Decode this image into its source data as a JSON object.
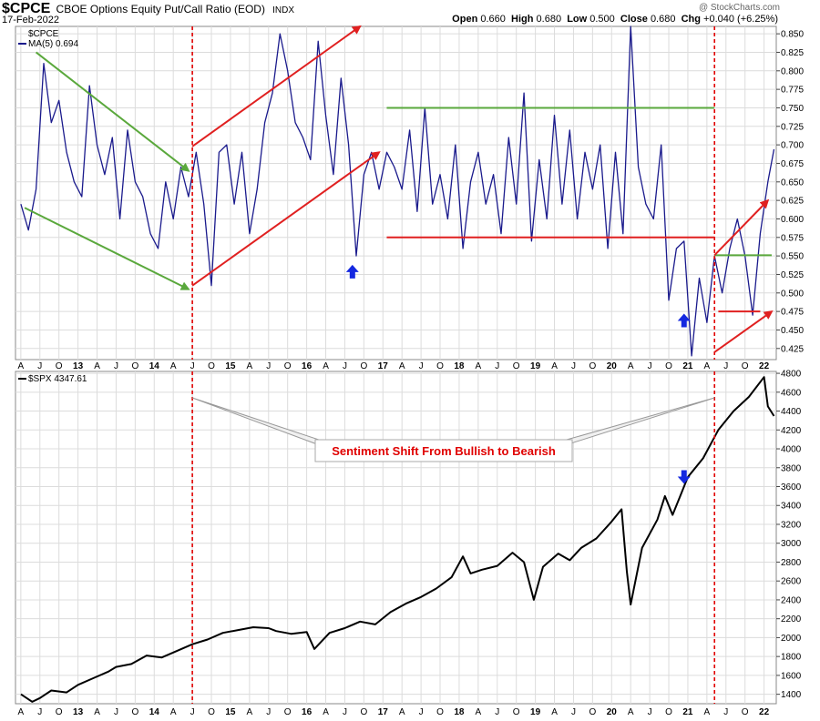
{
  "header": {
    "symbol": "$CPCE",
    "description": "CBOE Options Equity Put/Call Ratio (EOD)",
    "exchange": "INDX",
    "date": "17-Feb-2022",
    "open_label": "Open",
    "open": "0.660",
    "high_label": "High",
    "high": "0.680",
    "low_label": "Low",
    "low": "0.500",
    "close_label": "Close",
    "close": "0.680",
    "chg_label": "Chg",
    "chg": "+0.040 (+6.25%)",
    "copyright": "@ StockCharts.com"
  },
  "colors": {
    "cpce_line": "#1a1a8c",
    "spx_line": "#000000",
    "bullish_trend": "#5aa83c",
    "bearish_trend": "#e02020",
    "marker": "#1428e0",
    "grid": "#dcdcdc"
  },
  "chart_data": [
    {
      "type": "line",
      "name": "cpce_panel",
      "legend": [
        "$CPCE",
        "MA(5) 0.694"
      ],
      "x_ticks": [
        "A",
        "J",
        "O",
        "13",
        "A",
        "J",
        "O",
        "14",
        "A",
        "J",
        "O",
        "15",
        "A",
        "J",
        "O",
        "16",
        "A",
        "J",
        "O",
        "17",
        "A",
        "J",
        "O",
        "18",
        "A",
        "J",
        "O",
        "19",
        "A",
        "J",
        "O",
        "20",
        "A",
        "J",
        "O",
        "21",
        "A",
        "J",
        "O",
        "22"
      ],
      "x_range": [
        "2012-03",
        "2022-02"
      ],
      "y_ticks": [
        "0.425",
        "0.450",
        "0.475",
        "0.500",
        "0.525",
        "0.550",
        "0.575",
        "0.600",
        "0.625",
        "0.650",
        "0.675",
        "0.700",
        "0.725",
        "0.750",
        "0.775",
        "0.800",
        "0.825",
        "0.850"
      ],
      "ylim": [
        0.41,
        0.86
      ],
      "series": [
        {
          "name": "MA(5)",
          "x": [
            2012.25,
            2012.35,
            2012.45,
            2012.55,
            2012.65,
            2012.75,
            2012.85,
            2012.95,
            2013.05,
            2013.15,
            2013.25,
            2013.35,
            2013.45,
            2013.55,
            2013.65,
            2013.75,
            2013.85,
            2013.95,
            2014.05,
            2014.15,
            2014.25,
            2014.35,
            2014.45,
            2014.55,
            2014.65,
            2014.75,
            2014.85,
            2014.95,
            2015.05,
            2015.15,
            2015.25,
            2015.35,
            2015.45,
            2015.55,
            2015.65,
            2015.75,
            2015.85,
            2015.95,
            2016.05,
            2016.15,
            2016.25,
            2016.35,
            2016.45,
            2016.55,
            2016.65,
            2016.75,
            2016.85,
            2016.95,
            2017.05,
            2017.15,
            2017.25,
            2017.35,
            2017.45,
            2017.55,
            2017.65,
            2017.75,
            2017.85,
            2017.95,
            2018.05,
            2018.15,
            2018.25,
            2018.35,
            2018.45,
            2018.55,
            2018.65,
            2018.75,
            2018.85,
            2018.95,
            2019.05,
            2019.15,
            2019.25,
            2019.35,
            2019.45,
            2019.55,
            2019.65,
            2019.75,
            2019.85,
            2019.95,
            2020.05,
            2020.15,
            2020.25,
            2020.35,
            2020.45,
            2020.55,
            2020.65,
            2020.75,
            2020.85,
            2020.95,
            2021.05,
            2021.15,
            2021.25,
            2021.35,
            2021.45,
            2021.55,
            2021.65,
            2021.75,
            2021.85,
            2021.95,
            2022.05,
            2022.13
          ],
          "values": [
            0.62,
            0.585,
            0.64,
            0.81,
            0.73,
            0.76,
            0.69,
            0.65,
            0.63,
            0.78,
            0.7,
            0.66,
            0.71,
            0.6,
            0.72,
            0.65,
            0.63,
            0.58,
            0.56,
            0.65,
            0.6,
            0.67,
            0.63,
            0.69,
            0.62,
            0.51,
            0.69,
            0.7,
            0.62,
            0.69,
            0.58,
            0.64,
            0.73,
            0.77,
            0.85,
            0.8,
            0.73,
            0.71,
            0.68,
            0.84,
            0.74,
            0.66,
            0.79,
            0.7,
            0.55,
            0.66,
            0.69,
            0.64,
            0.69,
            0.67,
            0.64,
            0.72,
            0.61,
            0.75,
            0.62,
            0.66,
            0.6,
            0.7,
            0.56,
            0.65,
            0.69,
            0.62,
            0.66,
            0.58,
            0.71,
            0.62,
            0.77,
            0.57,
            0.68,
            0.6,
            0.74,
            0.62,
            0.72,
            0.6,
            0.69,
            0.64,
            0.7,
            0.56,
            0.69,
            0.58,
            0.86,
            0.67,
            0.62,
            0.6,
            0.7,
            0.49,
            0.56,
            0.57,
            0.415,
            0.52,
            0.46,
            0.55,
            0.5,
            0.56,
            0.6,
            0.55,
            0.47,
            0.58,
            0.65,
            0.694
          ]
        }
      ],
      "annotations": {
        "bullish_trendlines": [
          {
            "from": [
              2012.45,
              0.825
            ],
            "to": [
              2014.45,
              0.665
            ]
          },
          {
            "from": [
              2012.3,
              0.615
            ],
            "to": [
              2014.45,
              0.505
            ]
          },
          {
            "from": [
              2017.05,
              0.75
            ],
            "to": [
              2021.35,
              0.75
            ]
          },
          {
            "from": [
              2021.35,
              0.551
            ],
            "to": [
              2022.1,
              0.551
            ]
          }
        ],
        "bearish_trendlines": [
          {
            "from": [
              2014.5,
              0.698
            ],
            "to": [
              2016.7,
              0.86
            ],
            "arrow": true
          },
          {
            "from": [
              2014.5,
              0.51
            ],
            "to": [
              2016.95,
              0.69
            ],
            "arrow": true
          },
          {
            "from": [
              2017.05,
              0.575
            ],
            "to": [
              2021.35,
              0.575
            ]
          },
          {
            "from": [
              2021.35,
              0.551
            ],
            "to": [
              2022.05,
              0.625
            ],
            "arrow": true
          },
          {
            "from": [
              2021.35,
              0.42
            ],
            "to": [
              2022.1,
              0.475
            ],
            "arrow": true
          },
          {
            "from": [
              2021.4,
              0.475
            ],
            "to": [
              2021.95,
              0.475
            ]
          }
        ],
        "up_markers": [
          [
            2016.6,
            0.543
          ],
          [
            2020.95,
            0.477
          ]
        ],
        "regime_dividers": [
          2014.5,
          2021.35
        ]
      }
    },
    {
      "type": "line",
      "name": "spx_panel",
      "legend": [
        "$SPX 4347.61"
      ],
      "x_ticks": [
        "A",
        "J",
        "O",
        "13",
        "A",
        "J",
        "O",
        "14",
        "A",
        "J",
        "O",
        "15",
        "A",
        "J",
        "O",
        "16",
        "A",
        "J",
        "O",
        "17",
        "A",
        "J",
        "O",
        "18",
        "A",
        "J",
        "O",
        "19",
        "A",
        "J",
        "O",
        "20",
        "A",
        "J",
        "O",
        "21",
        "A",
        "J",
        "O",
        "22"
      ],
      "y_ticks": [
        "1400",
        "1600",
        "1800",
        "2000",
        "2200",
        "2400",
        "2600",
        "2800",
        "3000",
        "3200",
        "3400",
        "3600",
        "3800",
        "4000",
        "4200",
        "4400",
        "4600",
        "4800"
      ],
      "ylim": [
        1300,
        4820
      ],
      "series": [
        {
          "name": "$SPX",
          "x": [
            2012.25,
            2012.4,
            2012.5,
            2012.65,
            2012.85,
            2013.0,
            2013.2,
            2013.4,
            2013.5,
            2013.7,
            2013.9,
            2014.1,
            2014.3,
            2014.5,
            2014.7,
            2014.9,
            2015.1,
            2015.3,
            2015.5,
            2015.6,
            2015.8,
            2016.0,
            2016.1,
            2016.3,
            2016.5,
            2016.7,
            2016.9,
            2017.1,
            2017.3,
            2017.5,
            2017.7,
            2017.9,
            2018.05,
            2018.15,
            2018.3,
            2018.5,
            2018.7,
            2018.85,
            2018.98,
            2019.1,
            2019.3,
            2019.45,
            2019.6,
            2019.8,
            2020.0,
            2020.13,
            2020.2,
            2020.25,
            2020.4,
            2020.6,
            2020.7,
            2020.8,
            2020.9,
            2021.0,
            2021.2,
            2021.4,
            2021.6,
            2021.8,
            2022.0,
            2022.05,
            2022.13
          ],
          "values": [
            1400,
            1320,
            1360,
            1440,
            1420,
            1500,
            1570,
            1640,
            1690,
            1720,
            1810,
            1790,
            1860,
            1930,
            1980,
            2050,
            2080,
            2110,
            2100,
            2070,
            2040,
            2060,
            1880,
            2050,
            2100,
            2170,
            2140,
            2270,
            2360,
            2430,
            2520,
            2640,
            2860,
            2680,
            2720,
            2760,
            2900,
            2800,
            2400,
            2750,
            2890,
            2820,
            2950,
            3050,
            3230,
            3360,
            2700,
            2350,
            2950,
            3250,
            3500,
            3300,
            3500,
            3700,
            3900,
            4200,
            4400,
            4550,
            4760,
            4450,
            4347.61
          ]
        }
      ],
      "annotations": {
        "down_marker": [
          2020.95,
          3590
        ],
        "regime_dividers": [
          2014.5,
          2021.35
        ]
      }
    }
  ],
  "callout": {
    "text": "Sentiment Shift From Bullish to Bearish"
  }
}
